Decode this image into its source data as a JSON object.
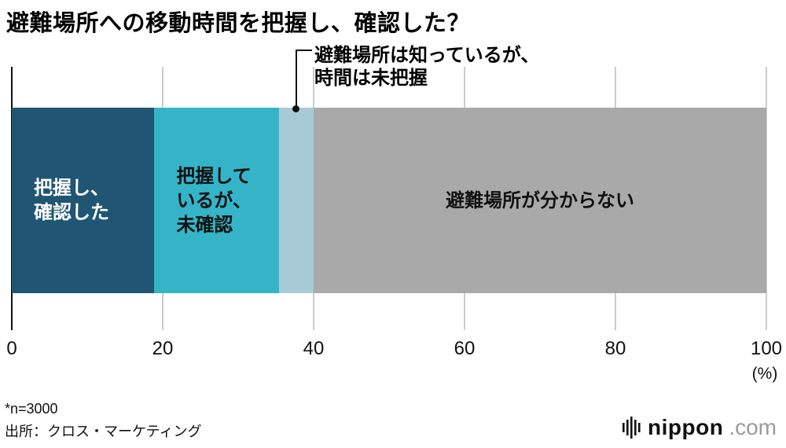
{
  "title": "避難場所への移動時間を把握し、確認した？",
  "chart_data": {
    "type": "bar",
    "orientation": "horizontal-stacked",
    "xlim": [
      0,
      100
    ],
    "x_ticks": [
      0,
      20,
      40,
      60,
      80,
      100
    ],
    "x_unit": "(%)",
    "grid": true,
    "segments": [
      {
        "label": "把握し、確認した",
        "value": 18.9,
        "color": "#205673",
        "text_color": "#ffffff",
        "bar_label_lines": [
          "把握し、",
          "確認した"
        ],
        "align": "left"
      },
      {
        "label": "把握しているが、未確認",
        "value": 16.5,
        "color": "#35b4c7",
        "text_color": "#111111",
        "bar_label_lines": [
          "把握して",
          "いるが、",
          "未確認"
        ],
        "align": "left"
      },
      {
        "label": "避難場所は知っているが、時間は未把握",
        "value": 4.6,
        "color": "#a8cad6",
        "text_color": "#111111",
        "bar_label_lines": [],
        "align": "left"
      },
      {
        "label": "避難場所が分からない",
        "value": 60.0,
        "color": "#a9a9a9",
        "text_color": "#111111",
        "bar_label_lines": [
          "避難場所が分からない"
        ],
        "align": "center"
      }
    ],
    "callout": {
      "segment_index": 2,
      "label_line1": "避難場所は知っているが、",
      "label_line2": "時間は未把握"
    }
  },
  "footer": {
    "note": "*n=3000",
    "source": "出所：クロス・マーケティング"
  },
  "logo": {
    "name": "nippon",
    "tld": ".com"
  }
}
